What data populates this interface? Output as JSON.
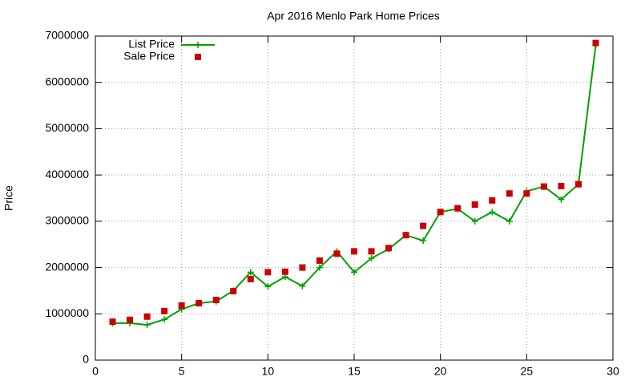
{
  "chart_data": {
    "type": "line",
    "title": "Apr 2016 Menlo Park Home Prices",
    "y_label": "Price",
    "x": [
      1,
      2,
      3,
      4,
      5,
      6,
      7,
      8,
      9,
      10,
      11,
      12,
      13,
      14,
      15,
      16,
      17,
      18,
      19,
      20,
      21,
      22,
      23,
      24,
      25,
      26,
      27,
      28,
      29
    ],
    "series": [
      {
        "name": "List Price",
        "color": "#00a000",
        "style": "linespoints",
        "values": [
          800000,
          800000,
          760000,
          880000,
          1100000,
          1230000,
          1270000,
          1500000,
          1900000,
          1590000,
          1800000,
          1600000,
          2000000,
          2350000,
          1900000,
          2200000,
          2400000,
          2700000,
          2580000,
          3200000,
          3270000,
          3000000,
          3200000,
          3000000,
          3650000,
          3750000,
          3470000,
          3800000,
          6800000
        ]
      },
      {
        "name": "Sale Price",
        "color": "#cc0000",
        "style": "points",
        "values": [
          830000,
          870000,
          940000,
          1060000,
          1180000,
          1230000,
          1300000,
          1490000,
          1750000,
          1900000,
          1910000,
          2000000,
          2150000,
          2300000,
          2350000,
          2350000,
          2420000,
          2700000,
          2900000,
          3200000,
          3280000,
          3360000,
          3450000,
          3600000,
          3600000,
          3750000,
          3760000,
          3800000,
          6850000
        ]
      }
    ],
    "xlim": [
      0,
      30
    ],
    "xticks": [
      0,
      5,
      10,
      15,
      20,
      25,
      30
    ],
    "ylim": [
      0,
      7000000
    ],
    "yticks": [
      0,
      1000000,
      2000000,
      3000000,
      4000000,
      5000000,
      6000000,
      7000000
    ],
    "grid": true,
    "legend": "top-left"
  }
}
